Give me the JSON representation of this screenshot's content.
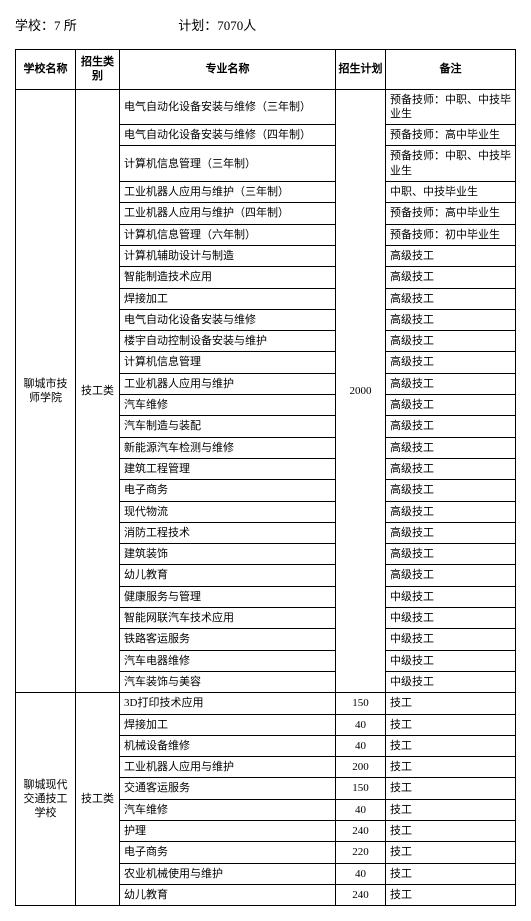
{
  "header": {
    "schools_label": "学校：7 所",
    "plan_label": "计划：7070人"
  },
  "table": {
    "headers": {
      "school": "学校名称",
      "category": "招生类别",
      "major": "专业名称",
      "plan": "招生计划",
      "note": "备注"
    },
    "group1": {
      "school": "聊城市技师学院",
      "category": "技工类",
      "plan": "2000",
      "rows": [
        {
          "major": "电气自动化设备安装与维修（三年制）",
          "note": "预备技师：中职、中技毕业生"
        },
        {
          "major": "电气自动化设备安装与维修（四年制）",
          "note": "预备技师：高中毕业生"
        },
        {
          "major": "计算机信息管理（三年制）",
          "note": "预备技师：中职、中技毕业生"
        },
        {
          "major": "工业机器人应用与维护（三年制）",
          "note": "中职、中技毕业生"
        },
        {
          "major": "工业机器人应用与维护（四年制）",
          "note": "预备技师：高中毕业生"
        },
        {
          "major": "计算机信息管理（六年制）",
          "note": "预备技师：初中毕业生"
        },
        {
          "major": "计算机辅助设计与制造",
          "note": "高级技工"
        },
        {
          "major": "智能制造技术应用",
          "note": "高级技工"
        },
        {
          "major": "焊接加工",
          "note": "高级技工"
        },
        {
          "major": "电气自动化设备安装与维修",
          "note": "高级技工"
        },
        {
          "major": "楼宇自动控制设备安装与维护",
          "note": "高级技工"
        },
        {
          "major": "计算机信息管理",
          "note": "高级技工"
        },
        {
          "major": "工业机器人应用与维护",
          "note": "高级技工"
        },
        {
          "major": "汽车维修",
          "note": "高级技工"
        },
        {
          "major": "汽车制造与装配",
          "note": "高级技工"
        },
        {
          "major": "新能源汽车检测与维修",
          "note": "高级技工"
        },
        {
          "major": "建筑工程管理",
          "note": "高级技工"
        },
        {
          "major": "电子商务",
          "note": "高级技工"
        },
        {
          "major": "现代物流",
          "note": "高级技工"
        },
        {
          "major": "消防工程技术",
          "note": "高级技工"
        },
        {
          "major": "建筑装饰",
          "note": "高级技工"
        },
        {
          "major": "幼儿教育",
          "note": "高级技工"
        },
        {
          "major": "健康服务与管理",
          "note": "中级技工"
        },
        {
          "major": "智能网联汽车技术应用",
          "note": "中级技工"
        },
        {
          "major": "铁路客运服务",
          "note": "中级技工"
        },
        {
          "major": "汽车电器维修",
          "note": "中级技工"
        },
        {
          "major": "汽车装饰与美容",
          "note": "中级技工"
        }
      ]
    },
    "group2": {
      "school": "聊城现代交通技工学校",
      "category": "技工类",
      "rows": [
        {
          "major": "3D打印技术应用",
          "plan": "150",
          "note": "技工"
        },
        {
          "major": "焊接加工",
          "plan": "40",
          "note": "技工"
        },
        {
          "major": "机械设备维修",
          "plan": "40",
          "note": "技工"
        },
        {
          "major": "工业机器人应用与维护",
          "plan": "200",
          "note": "技工"
        },
        {
          "major": "交通客运服务",
          "plan": "150",
          "note": "技工"
        },
        {
          "major": "汽车维修",
          "plan": "40",
          "note": "技工"
        },
        {
          "major": "护理",
          "plan": "240",
          "note": "技工"
        },
        {
          "major": "电子商务",
          "plan": "220",
          "note": "技工"
        },
        {
          "major": "农业机械使用与维护",
          "plan": "40",
          "note": "技工"
        },
        {
          "major": "幼儿教育",
          "plan": "240",
          "note": "技工"
        }
      ]
    }
  }
}
